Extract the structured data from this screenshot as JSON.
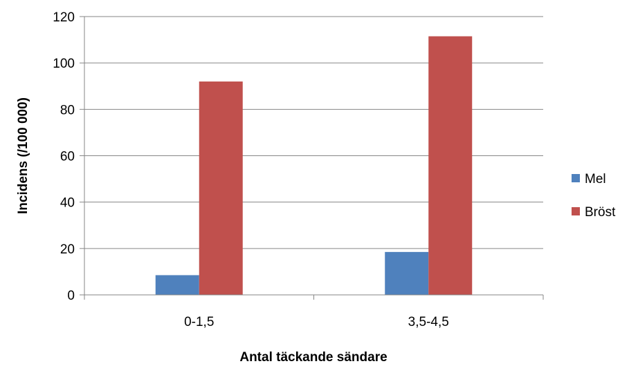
{
  "chart_data": {
    "type": "bar",
    "categories": [
      "0-1,5",
      "3,5-4,5"
    ],
    "series": [
      {
        "name": "Mel",
        "values": [
          8.5,
          18.5
        ],
        "color": "#4F81BD"
      },
      {
        "name": "Bröst",
        "values": [
          92,
          111.5
        ],
        "color": "#C0504D"
      }
    ],
    "xlabel": "Antal täckande sändare",
    "ylabel": "Incidens (/100 000)",
    "ylim": [
      0,
      120
    ],
    "yticks": [
      0,
      20,
      40,
      60,
      80,
      100,
      120
    ],
    "grid": true,
    "legend": "right",
    "colors": {
      "gridline": "#868686",
      "axis": "#868686"
    }
  }
}
